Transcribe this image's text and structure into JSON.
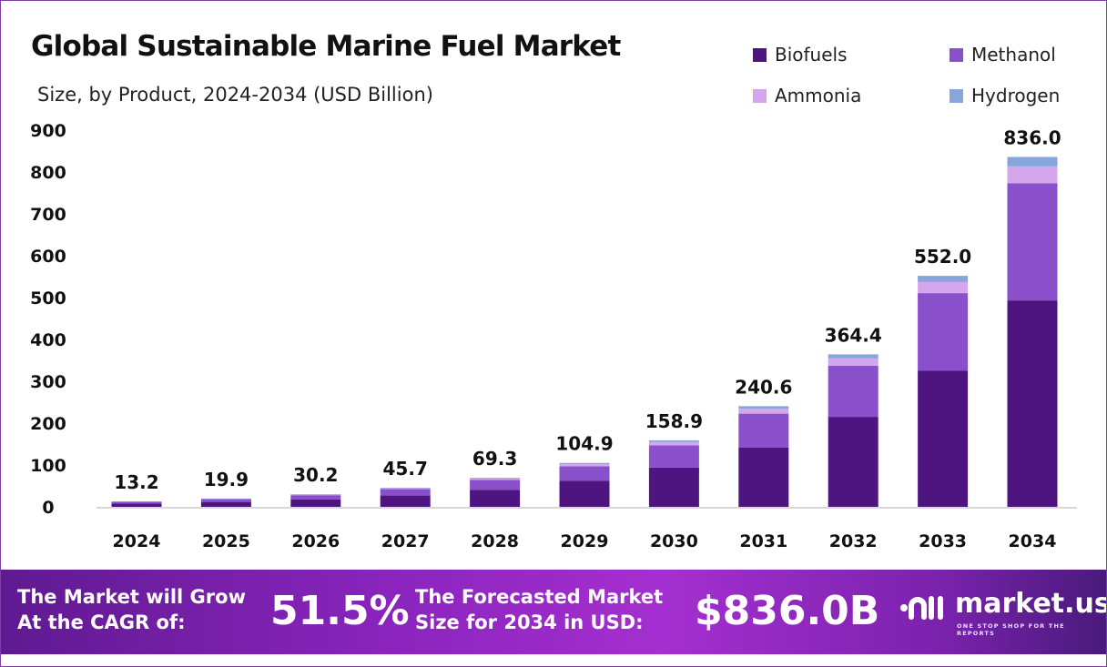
{
  "header": {
    "title": "Global Sustainable Marine Fuel Market",
    "subtitle": "Size, by Product, 2024-2034 (USD Billion)"
  },
  "chart_data": {
    "type": "bar",
    "stacked": true,
    "title": "Global Sustainable Marine Fuel Market",
    "subtitle": "Size, by Product, 2024-2034 (USD Billion)",
    "categories": [
      "2024",
      "2025",
      "2026",
      "2027",
      "2028",
      "2029",
      "2030",
      "2031",
      "2032",
      "2033",
      "2034"
    ],
    "totals": [
      "13.2",
      "19.9",
      "30.2",
      "45.7",
      "69.3",
      "104.9",
      "158.9",
      "240.6",
      "364.4",
      "552.0",
      "836.0"
    ],
    "series": [
      {
        "name": "Biofuels",
        "color": "#4e1580",
        "values": [
          7.8,
          11.7,
          17.8,
          27.0,
          40.9,
          61.9,
          93.8,
          142.0,
          215.0,
          325.7,
          493.2
        ]
      },
      {
        "name": "Methanol",
        "color": "#8a4fcb",
        "values": [
          4.4,
          6.7,
          10.1,
          15.3,
          23.2,
          35.1,
          53.2,
          80.6,
          122.1,
          184.9,
          280.1
        ]
      },
      {
        "name": "Ammonia",
        "color": "#d4a6ec",
        "values": [
          0.6,
          1.0,
          1.4,
          2.2,
          3.3,
          5.0,
          7.6,
          11.5,
          17.5,
          26.5,
          40.1
        ]
      },
      {
        "name": "Hydrogen",
        "color": "#87a7dc",
        "values": [
          0.4,
          0.5,
          0.9,
          1.2,
          1.9,
          2.9,
          4.3,
          6.5,
          9.8,
          14.9,
          22.6
        ]
      }
    ],
    "yticks": [
      "0",
      "100",
      "200",
      "300",
      "400",
      "500",
      "600",
      "700",
      "800",
      "900"
    ],
    "ylim": [
      0,
      900
    ],
    "grid": false,
    "legend_position": "top-right"
  },
  "footer": {
    "cagr_label_1": "The Market will Grow",
    "cagr_label_2": "At the CAGR of:",
    "cagr_value": "51.5%",
    "forecast_label_1": "The Forecasted Market",
    "forecast_label_2": "Size for 2034 in USD:",
    "forecast_value": "$836.0B",
    "logo_text": "market.us",
    "logo_tagline": "ONE STOP SHOP FOR THE REPORTS"
  }
}
